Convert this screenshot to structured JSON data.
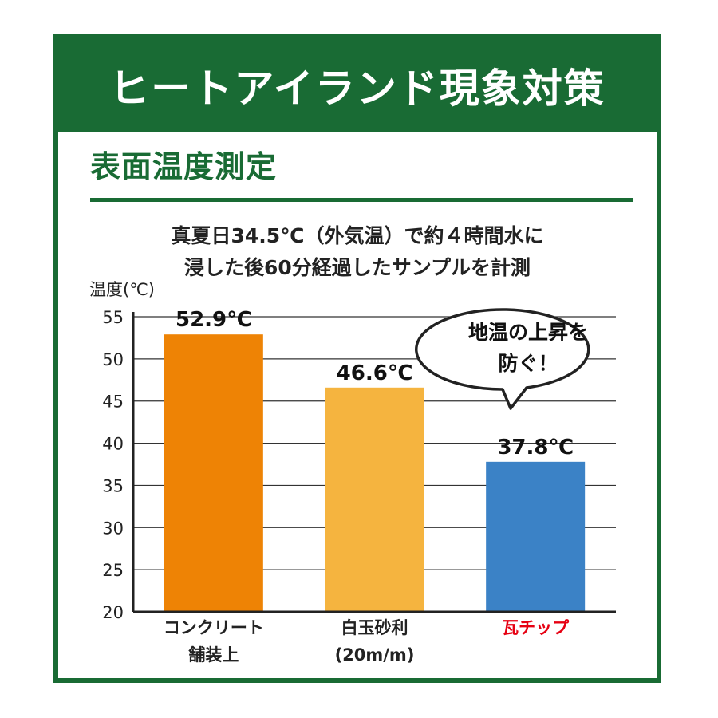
{
  "header": {
    "title": "ヒートアイランド現象対策"
  },
  "section": {
    "title": "表面温度測定"
  },
  "description": {
    "line1": "真夏日34.5℃（外気温）で約４時間水に",
    "line2": "浸した後60分経過したサンプルを計測"
  },
  "callout": {
    "line1": "地温の上昇を",
    "line2": "防ぐ！"
  },
  "colors": {
    "brand_green": "#196b34",
    "bar_concrete": "#ee8305",
    "bar_gravel": "#f5b43f",
    "bar_tile": "#3b82c6",
    "highlight_red": "#e60012"
  },
  "chart_data": {
    "type": "bar",
    "ylabel": "温度(℃)",
    "ylim": [
      20,
      55
    ],
    "yticks": [
      20,
      25,
      30,
      35,
      40,
      45,
      50,
      55
    ],
    "grid": true,
    "categories": [
      {
        "line1": "コンクリート",
        "line2": "舗装上",
        "highlight": false
      },
      {
        "line1": "白玉砂利",
        "line2": "(20m/m)",
        "highlight": false
      },
      {
        "line1": "瓦チップ",
        "line2": "",
        "highlight": true
      }
    ],
    "values": [
      52.9,
      46.6,
      37.8
    ],
    "data_labels": [
      "52.9℃",
      "46.6℃",
      "37.8℃"
    ]
  }
}
